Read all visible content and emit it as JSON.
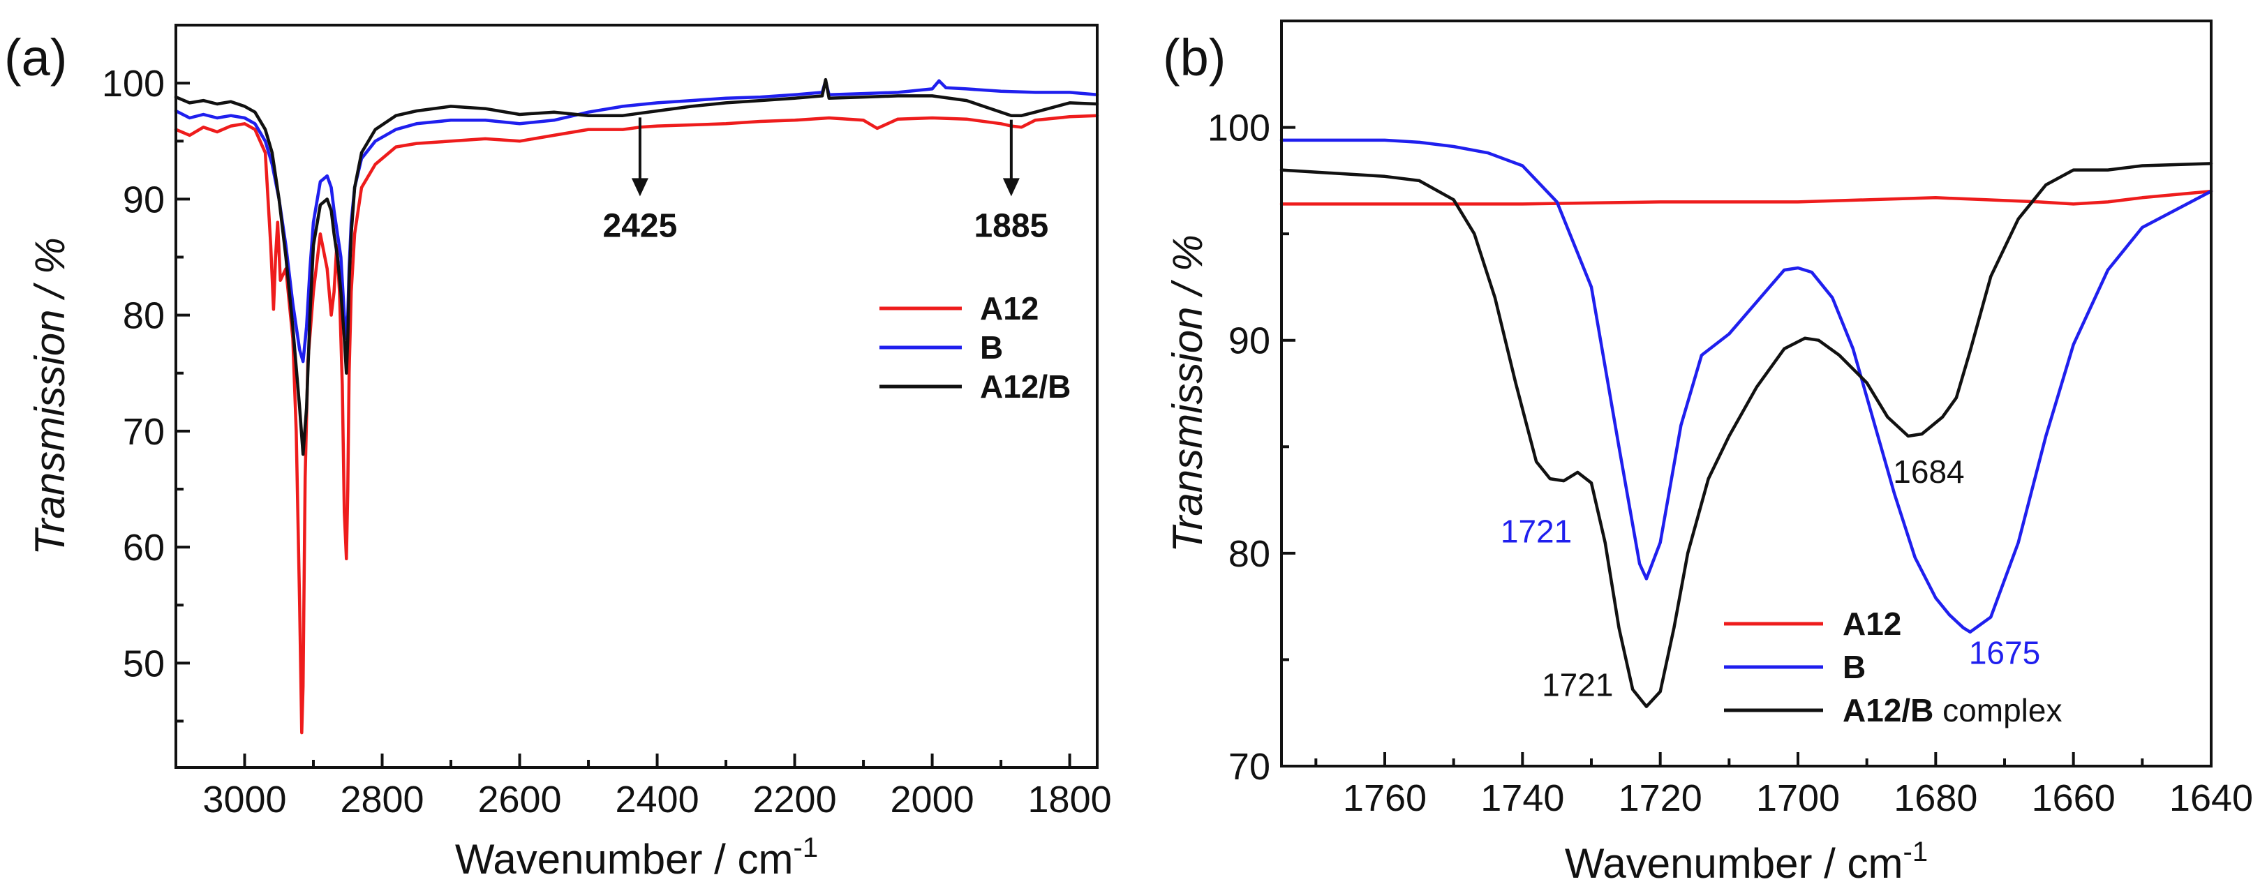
{
  "colors": {
    "A12": "#ee1c1c",
    "B": "#1f1fee",
    "A12B": "#111111"
  },
  "chart_data": [
    {
      "type": "line",
      "panel_label": "(a)",
      "xlabel": "Wavenumber / cm",
      "xlabel_sup": "-1",
      "ylabel": "Transmission / %",
      "xlim": [
        3100,
        1760
      ],
      "ylim": [
        41,
        105
      ],
      "x_ticks": [
        3000,
        2800,
        2600,
        2400,
        2200,
        2000,
        1800
      ],
      "x_tick_labels": [
        "3000",
        "2800",
        "2600",
        "2400",
        "2200",
        "2000",
        "1800"
      ],
      "y_ticks": [
        50,
        60,
        70,
        80,
        90,
        100
      ],
      "y_tick_labels": [
        "50",
        "60",
        "70",
        "80",
        "90",
        "100"
      ],
      "legend": {
        "position": "center-right",
        "entries": [
          {
            "label": "A12",
            "suffix": "",
            "series": "A12"
          },
          {
            "label": "B",
            "suffix": "",
            "series": "B"
          },
          {
            "label": "A12/B",
            "suffix": "",
            "series": "A12B"
          }
        ]
      },
      "annotations": [
        {
          "text": "2425",
          "x": 2425,
          "y": 97.4,
          "label_y": 90,
          "type": "arrow"
        },
        {
          "text": "1885",
          "x": 1885,
          "y": 97.2,
          "label_y": 90,
          "type": "arrow"
        }
      ],
      "series": [
        {
          "name": "A12",
          "color_key": "A12",
          "x": [
            3100,
            3080,
            3060,
            3040,
            3020,
            3000,
            2985,
            2970,
            2962,
            2958,
            2955,
            2952,
            2948,
            2940,
            2930,
            2925,
            2920,
            2917,
            2915,
            2912,
            2908,
            2900,
            2890,
            2880,
            2874,
            2870,
            2866,
            2862,
            2858,
            2855,
            2852,
            2850,
            2848,
            2845,
            2840,
            2830,
            2810,
            2780,
            2750,
            2700,
            2650,
            2600,
            2550,
            2500,
            2450,
            2425,
            2400,
            2350,
            2300,
            2250,
            2200,
            2150,
            2100,
            2080,
            2050,
            2000,
            1950,
            1900,
            1885,
            1870,
            1850,
            1800,
            1760
          ],
          "y": [
            96,
            95.5,
            96.2,
            95.8,
            96.3,
            96.5,
            96,
            94,
            86,
            80.5,
            85,
            88,
            83,
            84,
            78,
            70,
            55,
            44,
            48,
            66,
            76,
            82,
            87,
            84,
            80,
            82,
            86,
            82,
            74,
            63,
            59,
            65,
            75,
            82,
            87,
            91,
            93,
            94.5,
            94.8,
            95,
            95.2,
            95,
            95.5,
            96,
            96,
            96.2,
            96.3,
            96.4,
            96.5,
            96.7,
            96.8,
            97,
            96.8,
            96.1,
            96.9,
            97,
            96.9,
            96.5,
            96.3,
            96.2,
            96.8,
            97.1,
            97.2
          ]
        },
        {
          "name": "B",
          "color_key": "B",
          "x": [
            3100,
            3080,
            3060,
            3040,
            3020,
            3000,
            2985,
            2970,
            2960,
            2950,
            2940,
            2930,
            2920,
            2915,
            2910,
            2905,
            2900,
            2890,
            2880,
            2874,
            2870,
            2865,
            2860,
            2855,
            2852,
            2850,
            2848,
            2845,
            2840,
            2830,
            2810,
            2780,
            2750,
            2700,
            2650,
            2600,
            2550,
            2500,
            2450,
            2400,
            2350,
            2300,
            2250,
            2200,
            2160,
            2155,
            2150,
            2100,
            2050,
            2000,
            1990,
            1980,
            1950,
            1900,
            1850,
            1800,
            1760
          ],
          "y": [
            97.6,
            97,
            97.3,
            97,
            97.2,
            97,
            96.5,
            95,
            93,
            90,
            86,
            81,
            77,
            76,
            79,
            84,
            88,
            91.5,
            92,
            91,
            89,
            87,
            85,
            80,
            78,
            80,
            84,
            88,
            91,
            93.5,
            95,
            96,
            96.5,
            96.8,
            96.8,
            96.5,
            96.8,
            97.5,
            98,
            98.3,
            98.5,
            98.7,
            98.8,
            99,
            99.2,
            100.2,
            99,
            99.1,
            99.2,
            99.5,
            100.2,
            99.6,
            99.5,
            99.3,
            99.2,
            99.2,
            99
          ]
        },
        {
          "name": "A12/B",
          "color_key": "A12B",
          "x": [
            3100,
            3080,
            3060,
            3040,
            3020,
            3000,
            2985,
            2970,
            2960,
            2950,
            2940,
            2930,
            2920,
            2915,
            2910,
            2905,
            2900,
            2890,
            2880,
            2874,
            2870,
            2865,
            2860,
            2855,
            2852,
            2850,
            2848,
            2845,
            2840,
            2830,
            2810,
            2780,
            2750,
            2700,
            2650,
            2600,
            2550,
            2500,
            2450,
            2425,
            2400,
            2350,
            2300,
            2250,
            2200,
            2160,
            2155,
            2150,
            2100,
            2050,
            2000,
            1950,
            1900,
            1885,
            1870,
            1850,
            1800,
            1760
          ],
          "y": [
            98.8,
            98.3,
            98.5,
            98.2,
            98.4,
            98,
            97.5,
            96,
            94,
            90,
            85,
            79,
            72,
            68,
            72,
            80,
            86,
            89.5,
            90,
            89,
            87,
            85,
            82,
            78,
            75,
            78,
            83,
            87,
            91,
            94,
            96,
            97.2,
            97.6,
            98,
            97.8,
            97.3,
            97.5,
            97.2,
            97.2,
            97.4,
            97.6,
            98,
            98.3,
            98.5,
            98.7,
            98.9,
            100.3,
            98.7,
            98.8,
            98.9,
            98.9,
            98.5,
            97.5,
            97.2,
            97.2,
            97.5,
            98.3,
            98.2
          ]
        }
      ]
    },
    {
      "type": "line",
      "panel_label": "(b)",
      "xlabel": "Wavenumber / cm",
      "xlabel_sup": "-1",
      "ylabel": "Transmission / %",
      "xlim": [
        1775,
        1640
      ],
      "ylim": [
        70,
        105
      ],
      "x_ticks": [
        1760,
        1740,
        1720,
        1700,
        1680,
        1660,
        1640
      ],
      "x_tick_labels": [
        "1760",
        "1740",
        "1720",
        "1700",
        "1680",
        "1660",
        "1640"
      ],
      "y_ticks": [
        70,
        80,
        90,
        100
      ],
      "y_tick_labels": [
        "70",
        "80",
        "90",
        "100"
      ],
      "legend": {
        "position": "bottom-center",
        "entries": [
          {
            "label": "A12",
            "suffix": "",
            "series": "A12"
          },
          {
            "label": "B",
            "suffix": "",
            "series": "B"
          },
          {
            "label": "A12/B",
            "suffix": " complex",
            "series": "A12B"
          }
        ]
      },
      "annotations": [
        {
          "text": "1721",
          "x": 1738,
          "y": 80.5,
          "color_key": "B"
        },
        {
          "text": "1721",
          "x": 1732,
          "y": 73.3,
          "color_key": "A12B"
        },
        {
          "text": "1684",
          "x": 1681,
          "y": 83.3,
          "color_key": "A12B"
        },
        {
          "text": "1675",
          "x": 1670,
          "y": 74.8,
          "color_key": "B"
        }
      ],
      "series": [
        {
          "name": "A12",
          "color_key": "A12",
          "x": [
            1775,
            1760,
            1740,
            1720,
            1700,
            1680,
            1665,
            1660,
            1655,
            1650,
            1640
          ],
          "y": [
            96.4,
            96.4,
            96.4,
            96.5,
            96.5,
            96.7,
            96.5,
            96.4,
            96.5,
            96.7,
            97
          ]
        },
        {
          "name": "B",
          "color_key": "B",
          "x": [
            1775,
            1760,
            1755,
            1750,
            1745,
            1740,
            1735,
            1730,
            1726,
            1723,
            1722,
            1720,
            1717,
            1714,
            1710,
            1706,
            1702,
            1700,
            1698,
            1695,
            1692,
            1689,
            1686,
            1683,
            1680,
            1678,
            1676,
            1675,
            1672,
            1668,
            1664,
            1660,
            1655,
            1650,
            1640
          ],
          "y": [
            99.4,
            99.4,
            99.3,
            99.1,
            98.8,
            98.2,
            96.5,
            92.5,
            85,
            79.5,
            78.8,
            80.5,
            86,
            89.3,
            90.3,
            91.8,
            93.3,
            93.4,
            93.2,
            92,
            89.6,
            86.2,
            82.8,
            79.8,
            77.9,
            77.1,
            76.5,
            76.3,
            77,
            80.5,
            85.5,
            89.8,
            93.3,
            95.3,
            97
          ]
        },
        {
          "name": "A12/B",
          "color_key": "A12B",
          "x": [
            1775,
            1760,
            1755,
            1750,
            1747,
            1744,
            1741,
            1738,
            1736,
            1734,
            1732,
            1730,
            1728,
            1726,
            1724,
            1722,
            1720,
            1718,
            1716,
            1713,
            1710,
            1706,
            1702,
            1699,
            1697,
            1694,
            1690,
            1687,
            1684,
            1682,
            1679,
            1677,
            1675,
            1672,
            1668,
            1664,
            1660,
            1655,
            1650,
            1640
          ],
          "y": [
            98,
            97.7,
            97.5,
            96.6,
            95,
            92,
            88,
            84.3,
            83.5,
            83.4,
            83.8,
            83.3,
            80.5,
            76.5,
            73.6,
            72.8,
            73.5,
            76.5,
            80,
            83.5,
            85.5,
            87.8,
            89.6,
            90.1,
            90,
            89.3,
            88,
            86.4,
            85.5,
            85.6,
            86.4,
            87.3,
            89.5,
            93,
            95.7,
            97.3,
            98,
            98,
            98.2,
            98.3
          ]
        }
      ]
    }
  ]
}
